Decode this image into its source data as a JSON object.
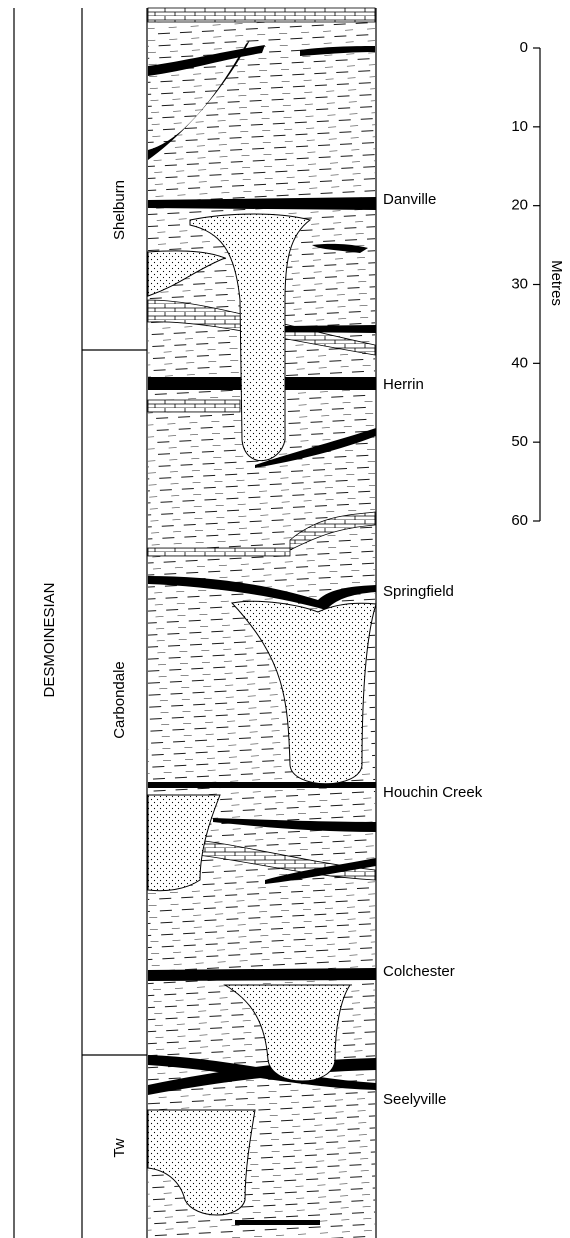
{
  "series": {
    "title": "DESMOINESIAN"
  },
  "formations": [
    {
      "name": "Shelburn"
    },
    {
      "name": "Carbondale"
    },
    {
      "name": "Tw"
    }
  ],
  "coals": [
    {
      "name": "Danville"
    },
    {
      "name": "Herrin"
    },
    {
      "name": "Springfield"
    },
    {
      "name": "Houchin Creek"
    },
    {
      "name": "Colchester"
    },
    {
      "name": "Seelyville"
    }
  ],
  "scale": {
    "label": "Metres",
    "ticks": [
      0,
      10,
      20,
      30,
      40,
      50,
      60
    ]
  }
}
